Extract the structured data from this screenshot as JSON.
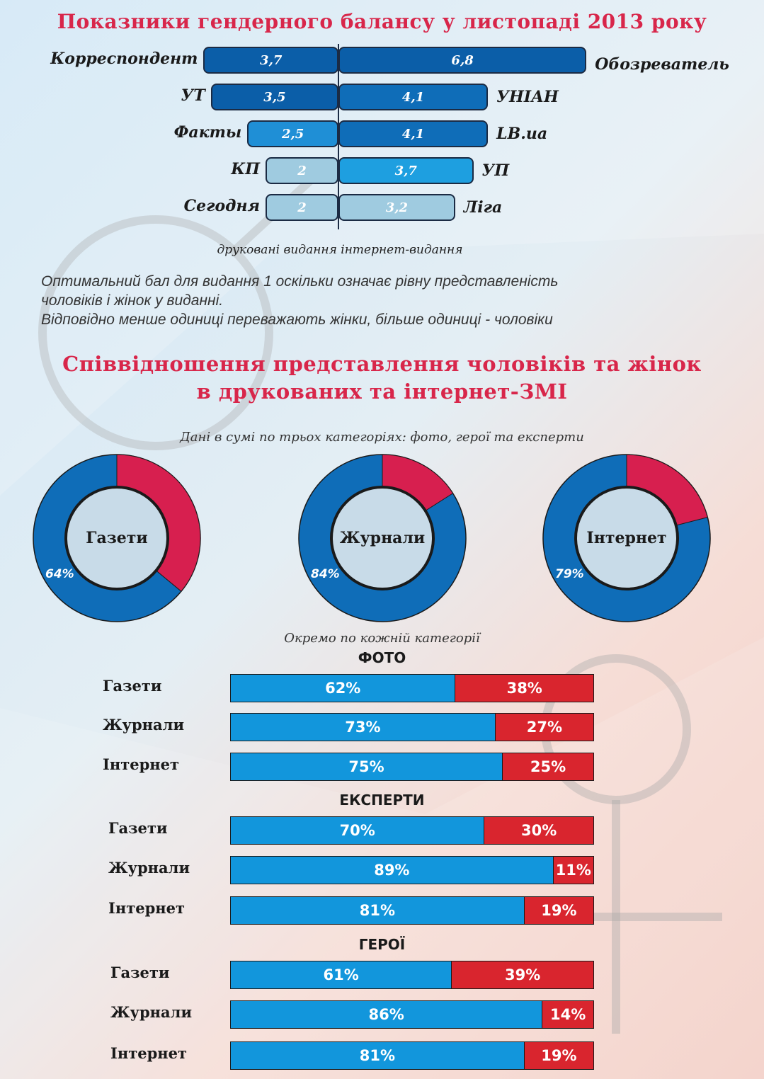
{
  "colors": {
    "title": "#d8264a",
    "men": "#1296dc",
    "women": "#d9252e",
    "donut_men": "#0f6db8",
    "donut_women": "#d71f4f",
    "donut_center": "#c8dbe8"
  },
  "chart_data": [
    {
      "type": "bar",
      "title": "Показники гендерного балансу у листопаді 2013 року",
      "xlabel_left": "друковані видання",
      "xlabel_right": "інтернет-видання",
      "print": [
        {
          "name": "Корреспондент",
          "value": 3.7,
          "label": "3,7"
        },
        {
          "name": "УТ",
          "value": 3.5,
          "label": "3,5"
        },
        {
          "name": "Факты",
          "value": 2.5,
          "label": "2,5"
        },
        {
          "name": "КП",
          "value": 2,
          "label": "2"
        },
        {
          "name": "Сегодня",
          "value": 2,
          "label": "2"
        }
      ],
      "online": [
        {
          "name": "Обозреватель",
          "value": 6.8,
          "label": "6,8"
        },
        {
          "name": "УНІАН",
          "value": 4.1,
          "label": "4,1"
        },
        {
          "name": "LB.ua",
          "value": 4.1,
          "label": "4,1"
        },
        {
          "name": "УП",
          "value": 3.7,
          "label": "3,7"
        },
        {
          "name": "Ліга",
          "value": 3.2,
          "label": "3,2"
        }
      ]
    },
    {
      "type": "pie",
      "title": "Співвідношення представлення чоловіків та жінок в друкованих та інтернет-ЗМІ",
      "subtitle": "Дані в сумі по трьох категоріях: фото, герої та експерти",
      "donuts": [
        {
          "name": "Газети",
          "men": 64,
          "label": "64%"
        },
        {
          "name": "Журнали",
          "men": 84,
          "label": "84%"
        },
        {
          "name": "Інтернет",
          "men": 79,
          "label": "79%"
        }
      ]
    },
    {
      "type": "bar",
      "stacked": true,
      "subtitle": "Окремо по кожній категорії",
      "groups": [
        {
          "title": "ФОТО",
          "rows": [
            {
              "name": "Газети",
              "men": 62,
              "women": 38,
              "men_label": "62%",
              "women_label": "38%"
            },
            {
              "name": "Журнали",
              "men": 73,
              "women": 27,
              "men_label": "73%",
              "women_label": "27%"
            },
            {
              "name": "Інтернет",
              "men": 75,
              "women": 25,
              "men_label": "75%",
              "women_label": "25%"
            }
          ]
        },
        {
          "title": "ЕКСПЕРТИ",
          "rows": [
            {
              "name": "Газети",
              "men": 70,
              "women": 30,
              "men_label": "70%",
              "women_label": "30%"
            },
            {
              "name": "Журнали",
              "men": 89,
              "women": 11,
              "men_label": "89%",
              "women_label": "11%"
            },
            {
              "name": "Інтернет",
              "men": 81,
              "women": 19,
              "men_label": "81%",
              "women_label": "19%"
            }
          ]
        },
        {
          "title": "ГЕРОЇ",
          "rows": [
            {
              "name": "Газети",
              "men": 61,
              "women": 39,
              "men_label": "61%",
              "women_label": "39%"
            },
            {
              "name": "Журнали",
              "men": 86,
              "women": 14,
              "men_label": "86%",
              "women_label": "14%"
            },
            {
              "name": "Інтернет",
              "men": 81,
              "women": 19,
              "men_label": "81%",
              "women_label": "19%"
            }
          ]
        }
      ]
    }
  ],
  "note": {
    "line1": "Оптимальний бал для видання 1 оскільки означає рівну представленість",
    "line2": "чоловіків і жінок у виданні.",
    "line3": "Відповідно менше одиниці переважають жінки, більше одиниці - чоловіки"
  },
  "titles": {
    "second_line1": "Співвідношення представлення чоловіків та жінок",
    "second_line2": "в друкованих та інтернет-ЗМІ"
  }
}
